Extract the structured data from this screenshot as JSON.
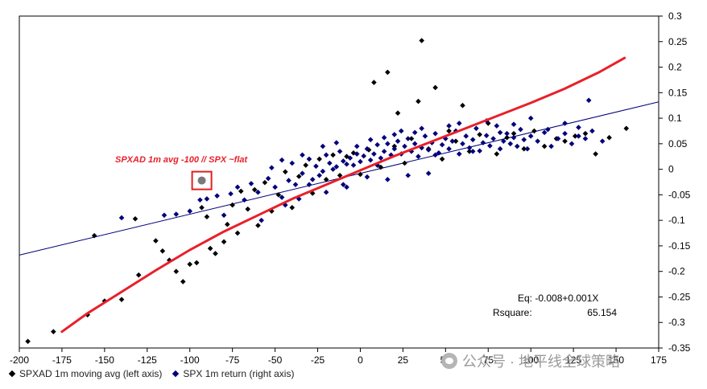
{
  "chart_data": {
    "type": "scatter",
    "title": "",
    "xlabel": "",
    "ylabel": "",
    "xlim": [
      -200,
      175
    ],
    "ylim": [
      -0.35,
      0.3
    ],
    "x_ticks": [
      "-200",
      "-175",
      "-150",
      "-125",
      "-100",
      "-75",
      "-50",
      "-25",
      "0",
      "25",
      "50",
      "75",
      "100",
      "125",
      "150",
      "175"
    ],
    "y_ticks": [
      "0.3",
      "0.25",
      "0.2",
      "0.15",
      "0.1",
      "0.05",
      "0",
      "-0.05",
      "-0.1",
      "-0.15",
      "-0.2",
      "-0.25",
      "-0.3",
      "-0.35"
    ],
    "series": [
      {
        "name": "SPXAD 1m moving avg (left axis)",
        "color": "#000000",
        "marker": "diamond",
        "points": [
          [
            -195,
            -0.337
          ],
          [
            -180,
            -0.318
          ],
          [
            -160,
            -0.285
          ],
          [
            -156,
            -0.13
          ],
          [
            -150,
            -0.258
          ],
          [
            -140,
            -0.255
          ],
          [
            -132,
            -0.097
          ],
          [
            -130,
            -0.207
          ],
          [
            -120,
            -0.14
          ],
          [
            -116,
            -0.16
          ],
          [
            -112,
            -0.178
          ],
          [
            -108,
            -0.2
          ],
          [
            -104,
            -0.22
          ],
          [
            -100,
            -0.186
          ],
          [
            -96,
            -0.183
          ],
          [
            -93,
            -0.075
          ],
          [
            -90,
            -0.093
          ],
          [
            -88,
            -0.155
          ],
          [
            -85,
            -0.165
          ],
          [
            -80,
            -0.142
          ],
          [
            -78,
            -0.108
          ],
          [
            -75,
            -0.07
          ],
          [
            -72,
            -0.125
          ],
          [
            -70,
            -0.043
          ],
          [
            -66,
            -0.078
          ],
          [
            -62,
            -0.04
          ],
          [
            -60,
            -0.11
          ],
          [
            -56,
            -0.026
          ],
          [
            -52,
            -0.082
          ],
          [
            -48,
            -0.05
          ],
          [
            -44,
            -0.005
          ],
          [
            -40,
            -0.075
          ],
          [
            -36,
            -0.014
          ],
          [
            -32,
            0.008
          ],
          [
            -28,
            -0.047
          ],
          [
            -24,
            0.02
          ],
          [
            -20,
            -0.02
          ],
          [
            -16,
            0.028
          ],
          [
            -12,
            -0.012
          ],
          [
            -8,
            0.025
          ],
          [
            -4,
            0.032
          ],
          [
            0,
            -0.01
          ],
          [
            5,
            0.038
          ],
          [
            8,
            0.17
          ],
          [
            12,
            0.004
          ],
          [
            16,
            0.19
          ],
          [
            20,
            0.045
          ],
          [
            22,
            0.11
          ],
          [
            26,
            0.012
          ],
          [
            30,
            0.06
          ],
          [
            34,
            0.133
          ],
          [
            36,
            0.252
          ],
          [
            40,
            0.04
          ],
          [
            44,
            0.16
          ],
          [
            48,
            0.02
          ],
          [
            52,
            0.075
          ],
          [
            56,
            0.055
          ],
          [
            60,
            0.125
          ],
          [
            64,
            0.035
          ],
          [
            70,
            0.068
          ],
          [
            75,
            0.09
          ],
          [
            80,
            0.03
          ],
          [
            86,
            0.062
          ],
          [
            90,
            0.07
          ],
          [
            96,
            0.04
          ],
          [
            102,
            0.075
          ],
          [
            108,
            0.045
          ],
          [
            115,
            0.06
          ],
          [
            120,
            0.055
          ],
          [
            126,
            0.065
          ],
          [
            132,
            0.07
          ],
          [
            138,
            0.03
          ],
          [
            146,
            0.062
          ],
          [
            156,
            0.08
          ]
        ]
      },
      {
        "name": "SPX 1m return (right axis)",
        "color": "#00007a",
        "marker": "diamond",
        "points": [
          [
            -140,
            -0.095
          ],
          [
            -115,
            -0.09
          ],
          [
            -108,
            -0.088
          ],
          [
            -100,
            -0.082
          ],
          [
            -94,
            -0.06
          ],
          [
            -90,
            -0.058
          ],
          [
            -84,
            -0.052
          ],
          [
            -80,
            -0.09
          ],
          [
            -76,
            -0.048
          ],
          [
            -72,
            -0.035
          ],
          [
            -68,
            -0.06
          ],
          [
            -64,
            -0.028
          ],
          [
            -60,
            -0.045
          ],
          [
            -58,
            -0.1
          ],
          [
            -54,
            -0.018
          ],
          [
            -50,
            -0.035
          ],
          [
            -46,
            -0.055
          ],
          [
            -42,
            -0.022
          ],
          [
            -40,
            0.012
          ],
          [
            -38,
            -0.03
          ],
          [
            -34,
            -0.008
          ],
          [
            -30,
            0.02
          ],
          [
            -28,
            -0.02
          ],
          [
            -26,
            0.006
          ],
          [
            -22,
            -0.004
          ],
          [
            -20,
            0.028
          ],
          [
            -18,
            0.012
          ],
          [
            -14,
            0.005
          ],
          [
            -12,
            0.035
          ],
          [
            -10,
            0.016
          ],
          [
            -8,
            -0.035
          ],
          [
            -6,
            0.022
          ],
          [
            -4,
            0.008
          ],
          [
            -2,
            0.03
          ],
          [
            0,
            0.015
          ],
          [
            2,
            0.026
          ],
          [
            4,
            0.04
          ],
          [
            6,
            0.018
          ],
          [
            8,
            0.03
          ],
          [
            10,
            0.048
          ],
          [
            12,
            0.022
          ],
          [
            14,
            0.035
          ],
          [
            16,
            0.05
          ],
          [
            18,
            0.028
          ],
          [
            20,
            0.04
          ],
          [
            22,
            0.055
          ],
          [
            24,
            0.03
          ],
          [
            26,
            0.045
          ],
          [
            28,
            0.06
          ],
          [
            30,
            0.035
          ],
          [
            32,
            0.05
          ],
          [
            34,
            0.025
          ],
          [
            36,
            0.042
          ],
          [
            38,
            0.065
          ],
          [
            40,
            0.038
          ],
          [
            42,
            0.052
          ],
          [
            44,
            0.07
          ],
          [
            46,
            0.032
          ],
          [
            48,
            0.048
          ],
          [
            50,
            0.06
          ],
          [
            52,
            0.04
          ],
          [
            54,
            0.055
          ],
          [
            56,
            0.075
          ],
          [
            58,
            0.03
          ],
          [
            60,
            0.05
          ],
          [
            62,
            0.065
          ],
          [
            64,
            0.042
          ],
          [
            66,
            0.058
          ],
          [
            68,
            0.08
          ],
          [
            70,
            0.036
          ],
          [
            72,
            0.052
          ],
          [
            74,
            0.066
          ],
          [
            76,
            0.046
          ],
          [
            78,
            0.06
          ],
          [
            80,
            0.085
          ],
          [
            82,
            0.04
          ],
          [
            84,
            0.055
          ],
          [
            86,
            0.07
          ],
          [
            88,
            0.05
          ],
          [
            90,
            0.062
          ],
          [
            92,
            0.045
          ],
          [
            94,
            0.078
          ],
          [
            96,
            0.058
          ],
          [
            98,
            0.04
          ],
          [
            100,
            0.065
          ],
          [
            104,
            0.055
          ],
          [
            108,
            0.072
          ],
          [
            112,
            0.045
          ],
          [
            116,
            0.06
          ],
          [
            120,
            0.07
          ],
          [
            124,
            0.05
          ],
          [
            128,
            0.065
          ],
          [
            132,
            0.06
          ],
          [
            136,
            0.075
          ],
          [
            142,
            0.055
          ],
          [
            -30,
            -0.03
          ],
          [
            -24,
            -0.012
          ],
          [
            -16,
            0.0
          ],
          [
            -8,
            0.01
          ],
          [
            -2,
            0.045
          ],
          [
            10,
            0.008
          ],
          [
            14,
            0.062
          ],
          [
            24,
            0.075
          ],
          [
            36,
            0.08
          ],
          [
            44,
            0.028
          ],
          [
            52,
            0.085
          ],
          [
            58,
            0.09
          ],
          [
            66,
            0.035
          ],
          [
            74,
            0.095
          ],
          [
            82,
            0.072
          ],
          [
            90,
            0.088
          ],
          [
            100,
            0.1
          ],
          [
            110,
            0.078
          ],
          [
            120,
            0.09
          ],
          [
            128,
            0.082
          ],
          [
            134,
            0.135
          ],
          [
            -44,
            -0.07
          ],
          [
            -36,
            -0.058
          ],
          [
            -20,
            -0.045
          ],
          [
            -10,
            -0.03
          ],
          [
            4,
            -0.015
          ],
          [
            16,
            -0.02
          ],
          [
            28,
            -0.012
          ],
          [
            40,
            -0.008
          ],
          [
            -52,
            0.003
          ],
          [
            -46,
            0.018
          ],
          [
            -34,
            0.028
          ],
          [
            -22,
            0.045
          ],
          [
            -14,
            0.052
          ],
          [
            6,
            0.058
          ],
          [
            20,
            0.068
          ],
          [
            32,
            0.072
          ]
        ]
      }
    ],
    "lines": [
      {
        "name": "linear fit",
        "color": "#00007a",
        "from": [
          -200,
          -0.168
        ],
        "to": [
          175,
          0.132
        ]
      },
      {
        "name": "curve fit",
        "color": "#e8202a",
        "points": [
          [
            -175,
            -0.318
          ],
          [
            -160,
            -0.282
          ],
          [
            -140,
            -0.24
          ],
          [
            -120,
            -0.198
          ],
          [
            -100,
            -0.158
          ],
          [
            -80,
            -0.122
          ],
          [
            -60,
            -0.09
          ],
          [
            -40,
            -0.058
          ],
          [
            -20,
            -0.03
          ],
          [
            0,
            -0.002
          ],
          [
            20,
            0.026
          ],
          [
            40,
            0.052
          ],
          [
            60,
            0.078
          ],
          [
            80,
            0.104
          ],
          [
            100,
            0.13
          ],
          [
            120,
            0.158
          ],
          [
            140,
            0.19
          ],
          [
            155,
            0.218
          ]
        ]
      }
    ],
    "annotations": {
      "red_label": "SPXAD 1m avg -100 // SPX  ~flat",
      "highlight_point": [
        -93,
        -0.022
      ],
      "equation": "Eq:  -0.008+0.001X",
      "rsquare_label": "Rsquare:",
      "rsquare_value": "65.154"
    },
    "colors": {
      "grid_frame": "#000000",
      "red": "#e8202a",
      "highlight": "#7a7a7a",
      "highlight_box": "#e02020"
    }
  },
  "legend": {
    "items": [
      {
        "label": "SPXAD 1m moving avg (left axis)",
        "color": "#000000"
      },
      {
        "label": "SPX 1m return (right axis)",
        "color": "#00007a"
      }
    ]
  },
  "watermark": {
    "text": "公众号 · 地平线全球策略"
  }
}
